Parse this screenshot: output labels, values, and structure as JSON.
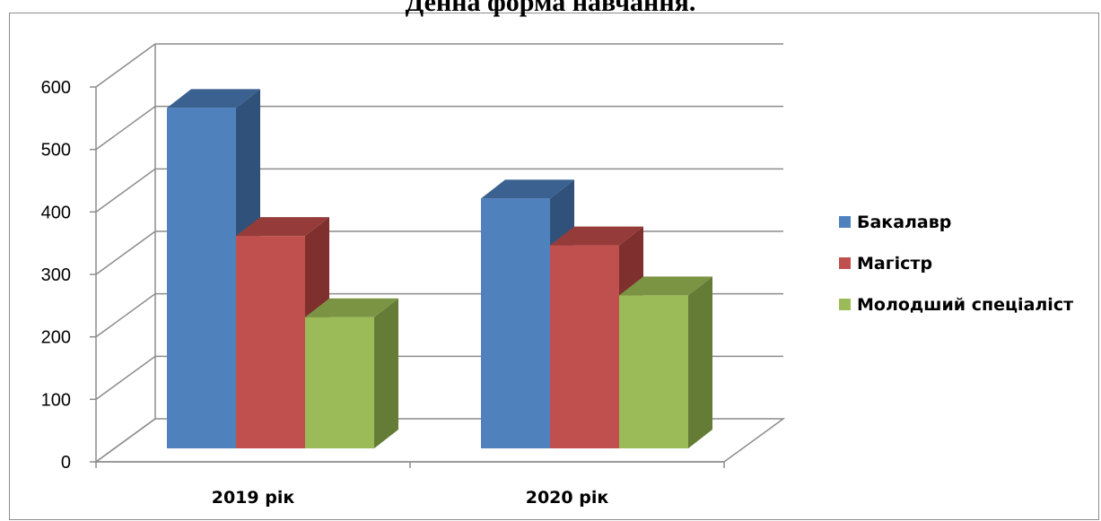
{
  "chart_data": {
    "type": "bar",
    "title": "Денна форма навчання.",
    "categories": [
      "2019 рік",
      "2020 рік"
    ],
    "series": [
      {
        "name": "Бакалавр",
        "values": [
          545,
          400
        ]
      },
      {
        "name": "Магістр",
        "values": [
          340,
          325
        ]
      },
      {
        "name": "Молодший спеціаліст",
        "values": [
          210,
          245
        ]
      }
    ],
    "ylim": [
      0,
      600
    ],
    "yticks": [
      0,
      100,
      200,
      300,
      400,
      500,
      600
    ],
    "grid": true,
    "three_d": true,
    "legend_position": "right",
    "colors": {
      "front": [
        "#4f81bd",
        "#c0504d",
        "#9bbb59"
      ],
      "side": [
        "#30527a",
        "#7f2f2d",
        "#647c36"
      ],
      "top": [
        "#3b6190",
        "#953c3a",
        "#7a9444"
      ],
      "grid": "#8c8c8c"
    }
  }
}
